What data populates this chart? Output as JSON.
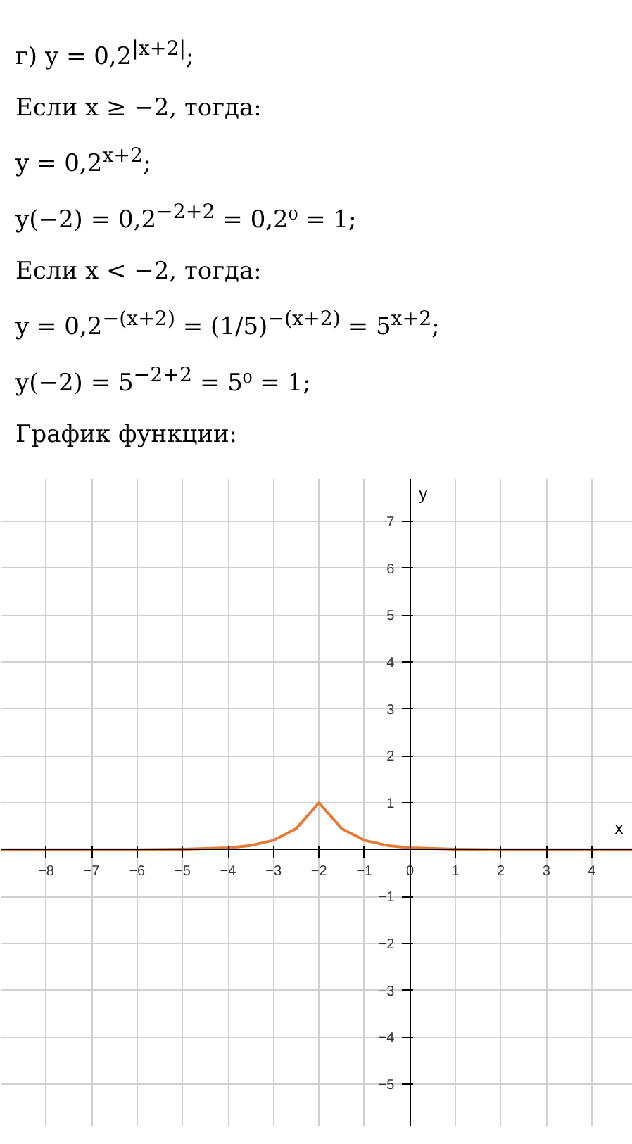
{
  "chart_data": {
    "type": "line",
    "xlabel": "x",
    "ylabel": "y",
    "annotations": [
      "г) y = 0,2$^{|x+2|}$;",
      "Если x ≥ −2, тогда:",
      "y = 0,2$^{x+2}$;",
      "y(−2) = 0,2$^{−2+2}$ = 0,2⁰ = 1;",
      "Если x < −2, тогда:",
      "y = 0,2$^{−(x+2)}$ = (1/5)$^{−(x+2)}$ = 5$^{x+2}$;",
      "y(−2) = 5$^{−2+2}$ = 5⁰ = 1;",
      "График функции:"
    ],
    "x": [
      -9,
      -8,
      -7,
      -6,
      -5,
      -4,
      -3.5,
      -3,
      -2.5,
      -2,
      -1.5,
      -1,
      -0.5,
      0,
      1,
      2,
      3,
      4,
      4.9
    ],
    "series": [
      {
        "color": "#e07b39",
        "values": [
          0,
          0,
          0,
          0,
          0.01,
          0.04,
          0.09,
          0.2,
          0.45,
          1,
          0.45,
          0.2,
          0.09,
          0.04,
          0.01,
          0,
          0,
          0,
          0
        ]
      }
    ],
    "xlim": [
      -9,
      4.9
    ],
    "ylim": [
      -5.9,
      7.9
    ],
    "xticks": [
      -8,
      -7,
      -6,
      -5,
      -4,
      -3,
      -2,
      -1,
      0,
      1,
      2,
      3,
      4
    ],
    "yticks": [
      -5,
      -4,
      -3,
      -2,
      -1,
      {
        "value": 0,
        "label": null
      },
      1,
      2,
      3,
      4,
      5,
      6,
      7
    ],
    "grid": true,
    "marker": "none",
    "line_style": "solid"
  }
}
